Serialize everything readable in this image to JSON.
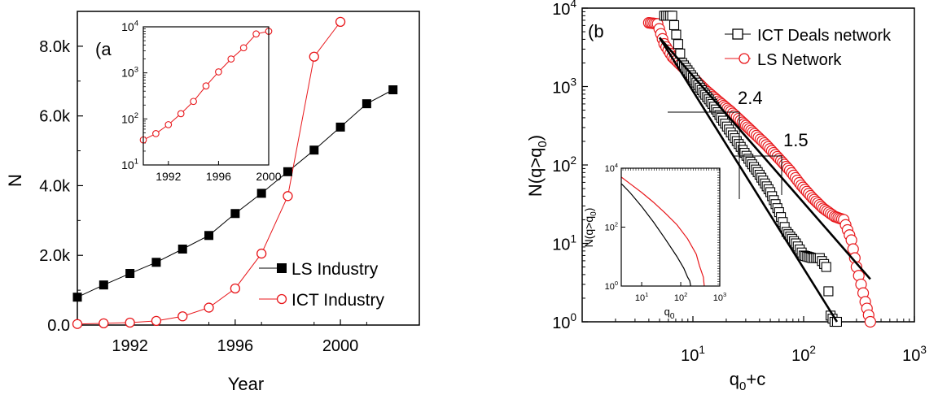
{
  "chart_data": [
    {
      "id": "a",
      "panel_label": "(a",
      "type": "line",
      "xlabel": "Year",
      "ylabel": "N",
      "xlim": [
        1990,
        2003
      ],
      "ylim": [
        0,
        9000
      ],
      "x_ticks": [
        1992,
        1996,
        2000
      ],
      "x_tick_labels": [
        "1992",
        "1996",
        "2000"
      ],
      "y_ticks": [
        0,
        2000,
        4000,
        6000,
        8000
      ],
      "y_tick_labels": [
        "0.0",
        "2.0k",
        "4.0k",
        "6.0k",
        "8.0k"
      ],
      "legend_position": "bottom-right",
      "series": [
        {
          "name": "LS Industry",
          "marker": "filled-square",
          "color": "#000000",
          "x": [
            1990,
            1991,
            1992,
            1993,
            1994,
            1995,
            1996,
            1997,
            1998,
            1999,
            2000,
            2001,
            2002
          ],
          "y": [
            800,
            1150,
            1480,
            1800,
            2180,
            2570,
            3200,
            3780,
            4400,
            5020,
            5680,
            6350,
            6750
          ]
        },
        {
          "name": "ICT Industry",
          "marker": "open-circle",
          "color": "#e8171b",
          "x": [
            1990,
            1991,
            1992,
            1993,
            1994,
            1995,
            1996,
            1997,
            1998,
            1999,
            2000
          ],
          "y": [
            30,
            50,
            70,
            120,
            250,
            500,
            1050,
            2050,
            3700,
            7700,
            8700
          ]
        }
      ],
      "inset": {
        "type": "line",
        "yscale": "log",
        "xlim": [
          1990,
          2000
        ],
        "ylim": [
          10,
          10000
        ],
        "x_ticks": [
          1992,
          1996,
          2000
        ],
        "x_tick_labels": [
          "1992",
          "1996",
          "2000"
        ],
        "y_ticks": [
          10,
          100,
          1000,
          10000
        ],
        "y_tick_labels": [
          {
            "b": "10",
            "e": "1"
          },
          {
            "b": "10",
            "e": "2"
          },
          {
            "b": "10",
            "e": "3"
          },
          {
            "b": "10",
            "e": "4"
          }
        ],
        "series": [
          {
            "name": "ICT Industry",
            "color": "#e8171b",
            "x": [
              1990,
              1991,
              1992,
              1993,
              1994,
              1995,
              1996,
              1997,
              1998,
              1999,
              2000
            ],
            "y": [
              35,
              48,
              75,
              130,
              240,
              520,
              1050,
              2000,
              3500,
              7000,
              8000
            ]
          }
        ]
      }
    },
    {
      "id": "b",
      "panel_label": "(b",
      "type": "scatter",
      "xscale": "log",
      "yscale": "log",
      "xlabel": {
        "main": "q",
        "sub": "0",
        "rest": "+c"
      },
      "ylabel": {
        "main": "N(q>q",
        "sub": "0",
        "rest": ")"
      },
      "xlim": [
        1,
        1000
      ],
      "ylim": [
        1,
        10000
      ],
      "x_ticks": [
        10,
        100,
        1000
      ],
      "x_tick_labels": [
        {
          "b": "10",
          "e": "1"
        },
        {
          "b": "10",
          "e": "2"
        },
        {
          "b": "10",
          "e": "3"
        }
      ],
      "y_ticks": [
        1,
        10,
        100,
        1000,
        10000
      ],
      "y_tick_labels": [
        {
          "b": "10",
          "e": "0"
        },
        {
          "b": "10",
          "e": "1"
        },
        {
          "b": "10",
          "e": "2"
        },
        {
          "b": "10",
          "e": "3"
        },
        {
          "b": "10",
          "e": "4"
        }
      ],
      "legend_position": "top-right",
      "series": [
        {
          "name": "ICT Deals network",
          "marker": "open-square",
          "color": "#000000",
          "x": [
            5.5,
            6.5,
            8,
            10,
            12,
            15,
            18,
            22,
            27,
            33,
            40,
            50,
            60,
            70,
            85,
            100,
            120,
            140,
            160,
            175,
            190,
            200
          ],
          "y": [
            8000,
            8000,
            2000,
            1300,
            900,
            600,
            400,
            260,
            170,
            110,
            75,
            45,
            25,
            14,
            10,
            7,
            6.5,
            6.5,
            5,
            1.2,
            1,
            1
          ]
        },
        {
          "name": "LS Network",
          "marker": "open-circle",
          "color": "#e8171b",
          "x": [
            4,
            4.8,
            5.5,
            6.5,
            8,
            10,
            13,
            17,
            22,
            28,
            36,
            46,
            60,
            75,
            95,
            120,
            150,
            190,
            230,
            270,
            300,
            330,
            360,
            400
          ],
          "y": [
            6500,
            6300,
            3500,
            2400,
            1800,
            1300,
            900,
            650,
            480,
            350,
            250,
            180,
            120,
            85,
            55,
            38,
            28,
            22,
            20,
            11,
            5,
            3,
            1.8,
            1
          ]
        }
      ],
      "fits": [
        {
          "slope_label": "2.4",
          "x": [
            5,
            200
          ],
          "y": [
            4200,
            1
          ]
        },
        {
          "slope_label": "1.5",
          "x": [
            5,
            400
          ],
          "y": [
            4200,
            3.5
          ]
        }
      ],
      "inset": {
        "type": "line",
        "xscale": "log",
        "yscale": "log",
        "xlabel": {
          "main": "q",
          "sub": "0",
          "rest": ""
        },
        "ylabel": {
          "main": "N(q>q",
          "sub": "0",
          "rest": ")"
        },
        "xlim": [
          3,
          1000
        ],
        "ylim": [
          1,
          10000
        ],
        "x_ticks": [
          10,
          100,
          1000
        ],
        "x_tick_labels": [
          {
            "b": "10",
            "e": "1"
          },
          {
            "b": "10",
            "e": "2"
          },
          {
            "b": "10",
            "e": "3"
          }
        ],
        "y_ticks": [
          1,
          100,
          10000
        ],
        "y_tick_labels": [
          {
            "b": "10",
            "e": "0"
          },
          {
            "b": "10",
            "e": "2"
          },
          {
            "b": "10",
            "e": "4"
          }
        ],
        "series": [
          {
            "name": "ICT Deals network",
            "color": "#000000",
            "x": [
              3,
              5,
              10,
              20,
              40,
              80,
              120,
              150,
              170,
              180
            ],
            "y": [
              3000,
              1500,
              500,
              150,
              40,
              10,
              4,
              2,
              1.5,
              1
            ]
          },
          {
            "name": "LS Network",
            "color": "#e8171b",
            "x": [
              3,
              5,
              10,
              20,
              40,
              80,
              150,
              250,
              300,
              380,
              400
            ],
            "y": [
              5000,
              3000,
              1500,
              700,
              300,
              120,
              40,
              12,
              5,
              2,
              1
            ]
          }
        ]
      }
    }
  ]
}
